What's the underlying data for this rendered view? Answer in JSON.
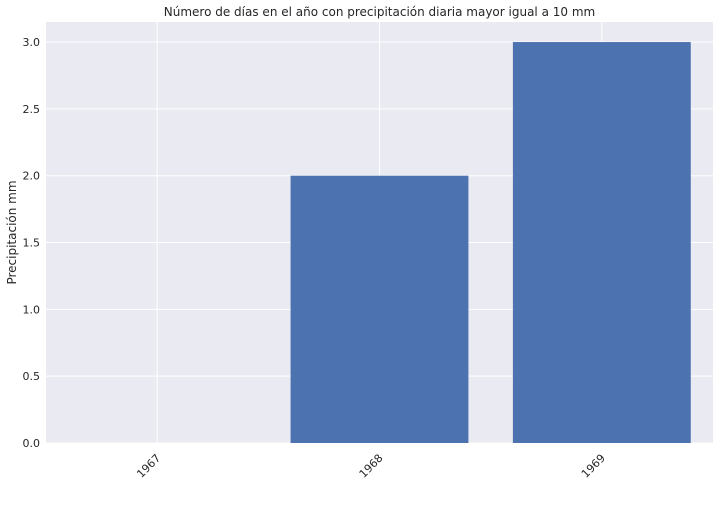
{
  "chart_data": {
    "type": "bar",
    "title": "Número de días en el año con precipitación diaria mayor igual a 10 mm",
    "xlabel": "",
    "ylabel": "Precipitación mm",
    "categories": [
      "1967",
      "1968",
      "1969"
    ],
    "values": [
      0,
      2,
      3
    ],
    "ylim": [
      0,
      3.15
    ],
    "yticks": [
      "0.0",
      "0.5",
      "1.0",
      "1.5",
      "2.0",
      "2.5",
      "3.0"
    ],
    "x_tick_rotation": "45 degrees",
    "grid": true,
    "colors": {
      "bar": "#4c72b0",
      "plot_background": "#eaeaf2",
      "grid": "#ffffff"
    }
  }
}
